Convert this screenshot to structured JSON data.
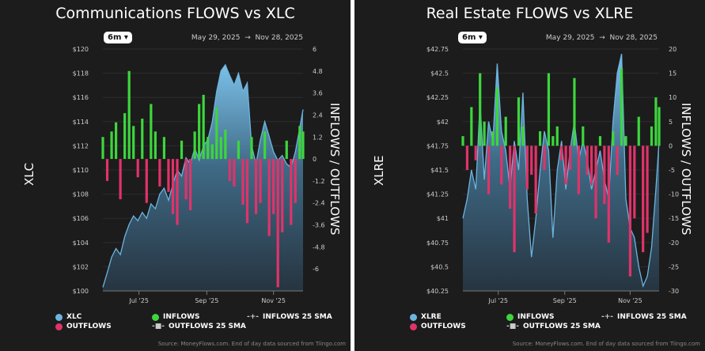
{
  "chart_data": [
    {
      "type": "bar+area",
      "title": "Communications FLOWS vs XLC",
      "range_button": "6m",
      "start_date": "May 29, 2025",
      "end_date": "Nov 28, 2025",
      "date_sep": "→",
      "ylabel_left": "XLC",
      "ylabel_right": "INFLOWS / OUTFLOWS",
      "left_ticks": [
        "$100",
        "$102",
        "$104",
        "$106",
        "$108",
        "$110",
        "$112",
        "$114",
        "$116",
        "$118",
        "$120"
      ],
      "left_range": [
        100,
        120
      ],
      "right_ticks": [
        "6",
        "4.8",
        "3.6",
        "2.4",
        "1.2",
        "0",
        "-1.2",
        "-2.4",
        "-3.6",
        "-4.8",
        "-6"
      ],
      "right_range": [
        -7.2,
        6
      ],
      "x_ticks": [
        {
          "label": "Jul '25",
          "date": "2025-07-01"
        },
        {
          "label": "Sep '25",
          "date": "2025-09-01"
        },
        {
          "label": "Nov '25",
          "date": "2025-11-01"
        }
      ],
      "x": [
        "2025-05-29",
        "2025-06-02",
        "2025-06-06",
        "2025-06-10",
        "2025-06-14",
        "2025-06-18",
        "2025-06-22",
        "2025-06-26",
        "2025-06-30",
        "2025-07-04",
        "2025-07-08",
        "2025-07-12",
        "2025-07-16",
        "2025-07-20",
        "2025-07-24",
        "2025-07-28",
        "2025-08-01",
        "2025-08-05",
        "2025-08-09",
        "2025-08-13",
        "2025-08-17",
        "2025-08-21",
        "2025-08-25",
        "2025-08-29",
        "2025-09-02",
        "2025-09-06",
        "2025-09-10",
        "2025-09-14",
        "2025-09-18",
        "2025-09-22",
        "2025-09-26",
        "2025-09-30",
        "2025-10-04",
        "2025-10-08",
        "2025-10-12",
        "2025-10-16",
        "2025-10-20",
        "2025-10-24",
        "2025-10-28",
        "2025-11-01",
        "2025-11-05",
        "2025-11-09",
        "2025-11-13",
        "2025-11-17",
        "2025-11-21",
        "2025-11-25",
        "2025-11-28"
      ],
      "price": [
        100.3,
        101.5,
        102.8,
        103.5,
        103.0,
        104.5,
        105.5,
        106.2,
        105.8,
        106.5,
        106.0,
        107.2,
        106.8,
        108.0,
        108.5,
        107.5,
        108.8,
        110.0,
        109.5,
        111.0,
        110.5,
        111.8,
        110.8,
        112.0,
        112.5,
        114.0,
        116.5,
        118.2,
        118.7,
        117.8,
        117.0,
        118.0,
        116.5,
        117.2,
        112.0,
        110.5,
        112.5,
        114.0,
        112.8,
        111.5,
        110.8,
        111.2,
        110.5,
        110.2,
        111.5,
        113.5,
        115.0
      ],
      "flows": [
        1.2,
        -1.2,
        1.5,
        2.0,
        -2.2,
        2.5,
        4.8,
        1.8,
        -1.0,
        2.2,
        -2.4,
        3.0,
        1.5,
        -1.5,
        1.2,
        -1.8,
        -3.0,
        -3.6,
        1.0,
        -2.2,
        -2.8,
        1.5,
        3.0,
        3.5,
        1.2,
        0.8,
        2.8,
        1.2,
        1.6,
        -1.2,
        -1.5,
        1.0,
        -2.5,
        -3.5,
        1.2,
        -3.0,
        -2.4,
        1.5,
        -4.2,
        -3.0,
        -7.0,
        -4.0,
        1.0,
        -3.6,
        -2.4,
        1.8,
        1.5
      ],
      "legend": [
        "XLC",
        "OUTFLOWS",
        "INFLOWS",
        "OUTFLOWS 25 SMA",
        "INFLOWS 25 SMA"
      ],
      "source": "Source: MoneyFlows.com. End of day data sourced from Tiingo.com"
    },
    {
      "type": "bar+area",
      "title": "Real Estate FLOWS vs XLRE",
      "range_button": "6m",
      "start_date": "May 29, 2025",
      "end_date": "Nov 28, 2025",
      "date_sep": "→",
      "ylabel_left": "XLRE",
      "ylabel_right": "INFLOWS / OUTFLOWS",
      "left_ticks": [
        "$40.25",
        "$40.5",
        "$40.75",
        "$41",
        "$41.25",
        "$41.5",
        "$41.75",
        "$42",
        "$42.25",
        "$42.5",
        "$42.75"
      ],
      "left_range": [
        40.25,
        42.75
      ],
      "right_ticks": [
        "20",
        "15",
        "10",
        "5",
        "0",
        "-5",
        "-10",
        "-15",
        "-20",
        "-25",
        "-30"
      ],
      "right_range": [
        -30,
        20
      ],
      "x_ticks": [
        {
          "label": "Jul '25",
          "date": "2025-07-01"
        },
        {
          "label": "Sep '25",
          "date": "2025-09-01"
        },
        {
          "label": "Nov '25",
          "date": "2025-11-01"
        }
      ],
      "x": [
        "2025-05-29",
        "2025-06-02",
        "2025-06-06",
        "2025-06-10",
        "2025-06-14",
        "2025-06-18",
        "2025-06-22",
        "2025-06-26",
        "2025-06-30",
        "2025-07-04",
        "2025-07-08",
        "2025-07-12",
        "2025-07-16",
        "2025-07-20",
        "2025-07-24",
        "2025-07-28",
        "2025-08-01",
        "2025-08-05",
        "2025-08-09",
        "2025-08-13",
        "2025-08-17",
        "2025-08-21",
        "2025-08-25",
        "2025-08-29",
        "2025-09-02",
        "2025-09-06",
        "2025-09-10",
        "2025-09-14",
        "2025-09-18",
        "2025-09-22",
        "2025-09-26",
        "2025-09-30",
        "2025-10-04",
        "2025-10-08",
        "2025-10-12",
        "2025-10-16",
        "2025-10-20",
        "2025-10-24",
        "2025-10-28",
        "2025-11-01",
        "2025-11-05",
        "2025-11-09",
        "2025-11-13",
        "2025-11-17",
        "2025-11-21",
        "2025-11-25",
        "2025-11-28"
      ],
      "price": [
        41.0,
        41.2,
        41.5,
        41.3,
        42.2,
        41.4,
        42.0,
        41.8,
        42.6,
        41.9,
        41.7,
        41.3,
        41.8,
        41.5,
        42.3,
        41.2,
        40.6,
        41.0,
        41.5,
        41.9,
        41.7,
        40.8,
        41.5,
        41.8,
        41.3,
        41.7,
        42.0,
        41.6,
        41.8,
        41.6,
        41.3,
        41.5,
        41.7,
        41.4,
        41.2,
        42.0,
        42.5,
        42.7,
        41.2,
        40.9,
        40.8,
        40.5,
        40.3,
        40.4,
        40.7,
        41.3,
        41.8
      ],
      "flows": [
        2,
        -5,
        8,
        -3,
        15,
        5,
        -10,
        3,
        12,
        -8,
        6,
        -13,
        -22,
        10,
        4,
        -9,
        -6,
        -14,
        3,
        -5,
        15,
        2,
        4,
        -3,
        -8,
        -5,
        14,
        -10,
        4,
        -6,
        -8,
        -15,
        2,
        -12,
        -20,
        3,
        -6,
        16,
        2,
        -27,
        -15,
        6,
        -22,
        -18,
        4,
        10,
        8
      ],
      "legend": [
        "XLRE",
        "OUTFLOWS",
        "INFLOWS",
        "OUTFLOWS 25 SMA",
        "INFLOWS 25 SMA"
      ],
      "source": "Source: MoneyFlows.com. End of day data sourced from Tiingo.com"
    }
  ],
  "colors": {
    "price": "#6cb4e0",
    "inflows": "#3dd63d",
    "outflows": "#e0336a",
    "background": "#1c1c1c"
  }
}
